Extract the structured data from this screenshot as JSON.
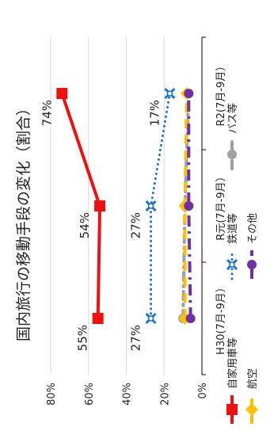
{
  "chart_data": {
    "type": "line",
    "title": "国内旅行の移動手段の変化（割合）",
    "categories": [
      "H30(7月-9月）",
      "R元(7月-9月）",
      "R2(7月-9月）"
    ],
    "ylim": [
      0,
      80
    ],
    "yticks": [
      "0%",
      "20%",
      "40%",
      "60%",
      "80%"
    ],
    "grid": true,
    "legend_position": "bottom",
    "series": [
      {
        "name": "自家用車等",
        "values": [
          55,
          54,
          74
        ],
        "color": "#ee1111",
        "labels": [
          "55%",
          "54%",
          "74%"
        ]
      },
      {
        "name": "鉄道等",
        "values": [
          27,
          27,
          17
        ],
        "color": "#1a72c8",
        "labels": [
          "27%",
          "27%",
          "17%"
        ]
      },
      {
        "name": "バス等",
        "values": [
          10,
          9,
          7
        ],
        "color": "#a0a0a0",
        "labels": []
      },
      {
        "name": "航空",
        "values": [
          9,
          9,
          8
        ],
        "color": "#ffc000",
        "labels": []
      },
      {
        "name": "その他",
        "values": [
          6,
          7,
          7
        ],
        "color": "#7030a0",
        "labels": []
      }
    ]
  }
}
